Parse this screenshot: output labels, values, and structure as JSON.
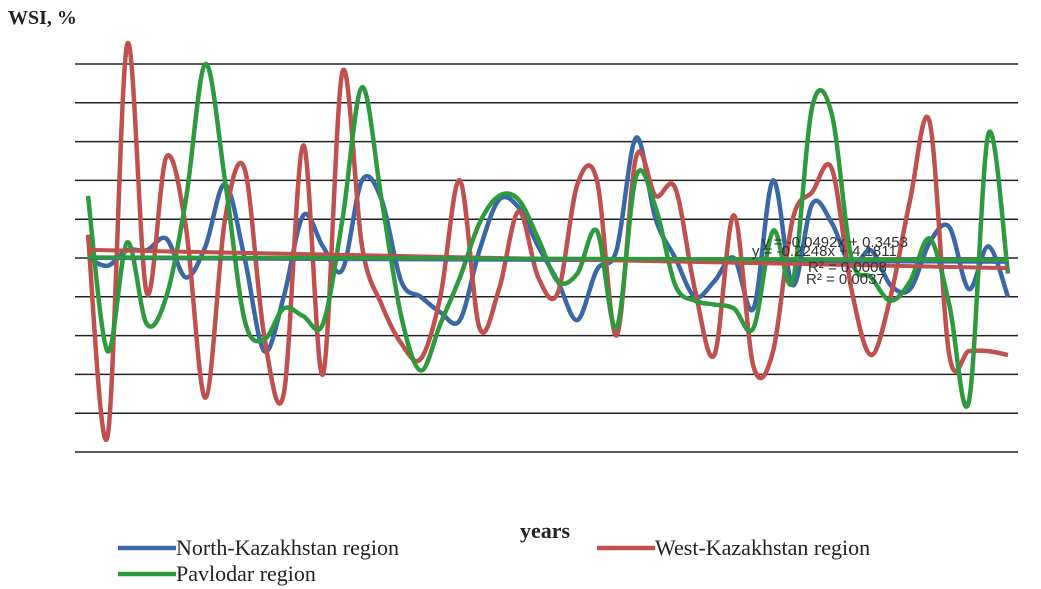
{
  "chart_data": {
    "type": "line",
    "title": "WSI, %",
    "x_label": "years",
    "ylim": [
      -5,
      5
    ],
    "yticks": [
      -5,
      -4,
      -3,
      -2,
      -1,
      0,
      1,
      2,
      3,
      4,
      5
    ],
    "grid": true,
    "legend": "bottom",
    "annotations": [
      "y = -0.0492x + 0.3453",
      "y = -0.2248x + 4.1811",
      "R² = 0.0008",
      "R² = 0.0037"
    ],
    "series": [
      {
        "name": "North-Kazakhstan region",
        "color": "#3a67a8",
        "trend": [
          0.0,
          -0.1
        ],
        "values": [
          0.0,
          -0.2,
          0.2,
          0.2,
          0.5,
          -0.5,
          0.3,
          1.9,
          0.0,
          -2.4,
          -1.0,
          1.1,
          0.3,
          -0.3,
          2.0,
          1.5,
          -0.6,
          -1.0,
          -1.4,
          -1.6,
          0.2,
          1.5,
          1.3,
          0.3,
          -0.6,
          -1.6,
          -0.3,
          0.2,
          3.1,
          1.0,
          0.0,
          -1.0,
          -0.6,
          0.0,
          -1.3,
          2.0,
          -0.7,
          1.4,
          0.9,
          -0.2,
          0.2,
          -0.7,
          -0.8,
          0.4,
          0.8,
          -0.8,
          0.3,
          -1.0
        ]
      },
      {
        "name": "West-Kazakhstan region",
        "color": "#c0504d",
        "trend": [
          0.21,
          -0.26
        ],
        "values": [
          0.6,
          -4.6,
          5.5,
          -0.9,
          2.6,
          0.8,
          -3.6,
          1.0,
          2.3,
          -2.0,
          -3.5,
          2.9,
          -3.0,
          4.8,
          0.3,
          -1.2,
          -2.2,
          -2.6,
          -1.0,
          2.0,
          -1.8,
          -0.8,
          1.2,
          -0.5,
          -0.9,
          1.9,
          2.0,
          -2.0,
          2.6,
          1.6,
          1.8,
          -0.8,
          -2.5,
          1.1,
          -2.8,
          -2.4,
          1.0,
          1.7,
          2.3,
          -0.8,
          -2.5,
          -1.0,
          1.5,
          3.5,
          -2.5,
          -2.4,
          -2.4,
          -2.5
        ]
      },
      {
        "name": "Pavlodar region",
        "color": "#2e9a3e",
        "trend": [
          0.02,
          -0.05
        ],
        "values": [
          1.6,
          -2.4,
          0.4,
          -1.7,
          -1.0,
          1.5,
          5.0,
          2.0,
          -1.6,
          -2.1,
          -1.3,
          -1.5,
          -1.7,
          1.0,
          4.4,
          1.5,
          -1.5,
          -2.9,
          -1.7,
          -0.5,
          0.9,
          1.6,
          1.5,
          0.5,
          -0.6,
          -0.4,
          0.7,
          -1.8,
          2.1,
          1.3,
          -0.7,
          -1.1,
          -1.2,
          -1.3,
          -1.8,
          0.7,
          -0.6,
          3.9,
          3.7,
          0.0,
          -0.5,
          -1.1,
          -0.6,
          0.5,
          -1.2,
          -3.7,
          3.2,
          -0.4
        ]
      }
    ]
  }
}
